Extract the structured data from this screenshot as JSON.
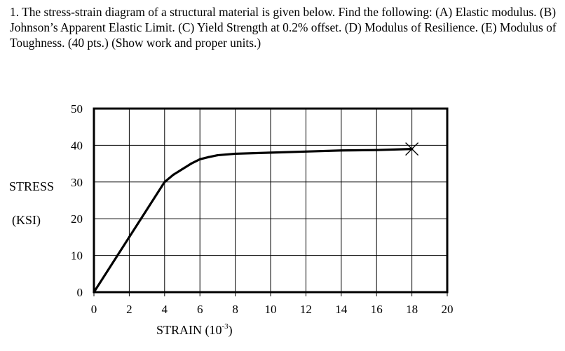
{
  "question": {
    "text": "1. The stress-strain diagram of a structural material is given below.  Find the following: (A) Elastic modulus.  (B) Johnson’s Apparent Elastic Limit.  (C) Yield Strength at 0.2% offset.  (D) Modulus of Resilience.  (E) Modulus of Toughness.  (40 pts.) (Show work and proper units.)"
  },
  "chart_data": {
    "type": "line",
    "title": "",
    "ylabel_line1": "STRESS",
    "ylabel_line2": "(KSI)",
    "xlabel_text": "STRAIN  (10",
    "xlabel_exp": "-3",
    "xlabel_close": ")",
    "xlim": [
      0,
      20
    ],
    "ylim": [
      0,
      50
    ],
    "xticks": [
      "0",
      "2",
      "4",
      "6",
      "8",
      "10",
      "12",
      "14",
      "16",
      "18",
      "20"
    ],
    "yticks": [
      "0",
      "10",
      "20",
      "30",
      "40",
      "50"
    ],
    "grid": true,
    "series": [
      {
        "x": [
          0,
          2,
          4,
          4.5,
          5,
          5.5,
          6,
          6.5,
          7,
          8,
          10,
          12,
          14,
          16,
          18
        ],
        "y": [
          0,
          15,
          30,
          32,
          33.5,
          35,
          36.2,
          36.8,
          37.3,
          37.7,
          38,
          38.3,
          38.6,
          38.7,
          39
        ]
      }
    ],
    "fracture_point": {
      "x": 18,
      "y": 39,
      "marker": "x"
    },
    "line_color": "#000000"
  }
}
